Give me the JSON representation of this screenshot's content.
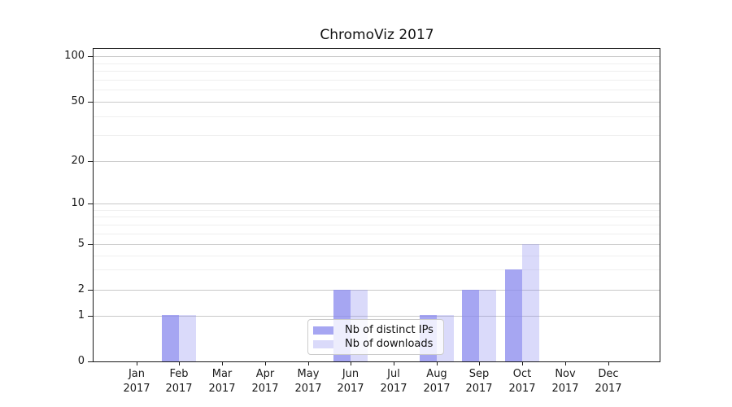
{
  "chart_data": {
    "type": "bar",
    "title": "ChromoViz 2017",
    "xlabel": "",
    "ylabel": "",
    "months": [
      "Jan",
      "Feb",
      "Mar",
      "Apr",
      "May",
      "Jun",
      "Jul",
      "Aug",
      "Sep",
      "Oct",
      "Nov",
      "Dec"
    ],
    "year": "2017",
    "y_ticks": [
      0,
      1,
      2,
      5,
      10,
      20,
      50,
      100
    ],
    "y_minor_ticks": [
      3,
      4,
      6,
      7,
      8,
      9,
      30,
      40,
      60,
      70,
      80,
      90
    ],
    "ylim": [
      0,
      100
    ],
    "y_scale": "log above 1, linear 0-1",
    "grid": "on",
    "legend_position": "lower center inside plot",
    "series": [
      {
        "name": "Nb of distinct IPs",
        "fill": "rgba(136,136,238,0.75)",
        "base_color": "#8888ee",
        "values": [
          0,
          1,
          0,
          0,
          0,
          2,
          0,
          1,
          2,
          3,
          0,
          0
        ]
      },
      {
        "name": "Nb of downloads",
        "fill": "rgba(136,136,238,0.31)",
        "base_color": "#8888ee",
        "values": [
          0,
          1,
          0,
          0,
          0,
          2,
          0,
          1,
          2,
          5,
          0,
          0
        ]
      }
    ]
  }
}
